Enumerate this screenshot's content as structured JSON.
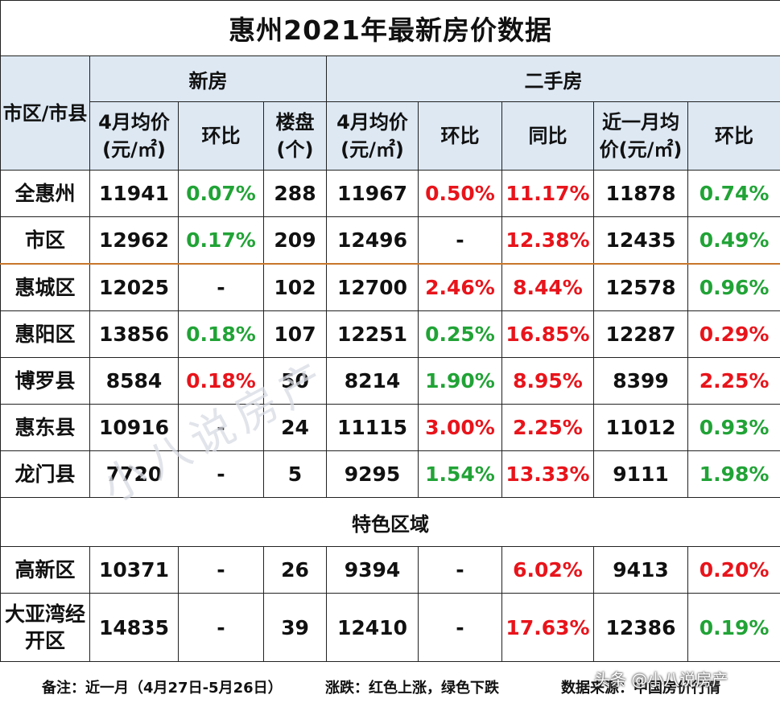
{
  "title": "惠州2021年最新房价数据",
  "header": {
    "region": "市区/市县",
    "new_house": "新房",
    "second_hand": "二手房",
    "new_avg_price": "4月均价(元/㎡)",
    "new_mom": "环比",
    "new_projects": "楼盘(个)",
    "sh_avg_price": "4月均价(元/㎡)",
    "sh_mom": "环比",
    "sh_yoy": "同比",
    "sh_recent_price": "近一月均价(元/㎡)",
    "sh_recent_mom": "环比"
  },
  "rows": [
    {
      "name": "全惠州",
      "new_price": "11941",
      "new_mom": "0.07%",
      "new_mom_color": "green",
      "projects": "288",
      "sh_price": "11967",
      "sh_mom": "0.50%",
      "sh_mom_color": "red",
      "sh_yoy": "11.17%",
      "sh_yoy_color": "red",
      "recent_price": "11878",
      "recent_mom": "0.74%",
      "recent_mom_color": "green"
    },
    {
      "name": "市区",
      "new_price": "12962",
      "new_mom": "0.17%",
      "new_mom_color": "green",
      "projects": "209",
      "sh_price": "12496",
      "sh_mom": "-",
      "sh_mom_color": "black",
      "sh_yoy": "12.38%",
      "sh_yoy_color": "red",
      "recent_price": "12435",
      "recent_mom": "0.49%",
      "recent_mom_color": "green"
    },
    {
      "name": "惠城区",
      "new_price": "12025",
      "new_mom": "-",
      "new_mom_color": "black",
      "projects": "102",
      "sh_price": "12700",
      "sh_mom": "2.46%",
      "sh_mom_color": "red",
      "sh_yoy": "8.44%",
      "sh_yoy_color": "red",
      "recent_price": "12578",
      "recent_mom": "0.96%",
      "recent_mom_color": "green"
    },
    {
      "name": "惠阳区",
      "new_price": "13856",
      "new_mom": "0.18%",
      "new_mom_color": "green",
      "projects": "107",
      "sh_price": "12251",
      "sh_mom": "0.25%",
      "sh_mom_color": "green",
      "sh_yoy": "16.85%",
      "sh_yoy_color": "red",
      "recent_price": "12287",
      "recent_mom": "0.29%",
      "recent_mom_color": "red"
    },
    {
      "name": "博罗县",
      "new_price": "8584",
      "new_mom": "0.18%",
      "new_mom_color": "red",
      "projects": "50",
      "sh_price": "8214",
      "sh_mom": "1.90%",
      "sh_mom_color": "green",
      "sh_yoy": "8.95%",
      "sh_yoy_color": "red",
      "recent_price": "8399",
      "recent_mom": "2.25%",
      "recent_mom_color": "red"
    },
    {
      "name": "惠东县",
      "new_price": "10916",
      "new_mom": "-",
      "new_mom_color": "black",
      "projects": "24",
      "sh_price": "11115",
      "sh_mom": "3.00%",
      "sh_mom_color": "red",
      "sh_yoy": "2.25%",
      "sh_yoy_color": "red",
      "recent_price": "11012",
      "recent_mom": "0.93%",
      "recent_mom_color": "green"
    },
    {
      "name": "龙门县",
      "new_price": "7720",
      "new_mom": "-",
      "new_mom_color": "black",
      "projects": "5",
      "sh_price": "9295",
      "sh_mom": "1.54%",
      "sh_mom_color": "green",
      "sh_yoy": "13.33%",
      "sh_yoy_color": "red",
      "recent_price": "9111",
      "recent_mom": "1.98%",
      "recent_mom_color": "green"
    }
  ],
  "special_section": "特色区域",
  "special_rows": [
    {
      "name": "高新区",
      "new_price": "10371",
      "new_mom": "-",
      "new_mom_color": "black",
      "projects": "26",
      "sh_price": "9394",
      "sh_mom": "-",
      "sh_mom_color": "black",
      "sh_yoy": "6.02%",
      "sh_yoy_color": "red",
      "recent_price": "9413",
      "recent_mom": "0.20%",
      "recent_mom_color": "red"
    },
    {
      "name": "大亚湾经开区",
      "new_price": "14835",
      "new_mom": "-",
      "new_mom_color": "black",
      "projects": "39",
      "sh_price": "12410",
      "sh_mom": "-",
      "sh_mom_color": "black",
      "sh_yoy": "17.63%",
      "sh_yoy_color": "red",
      "recent_price": "12386",
      "recent_mom": "0.19%",
      "recent_mom_color": "green"
    }
  ],
  "footer": {
    "note": "备注：近一月（4月27日-5月26日）",
    "legend": "涨跌：红色上涨，绿色下跌",
    "source": "数据来源：中国房价行情"
  },
  "watermark": "小八说房产",
  "platform_mark": "头条 @小八说房产"
}
